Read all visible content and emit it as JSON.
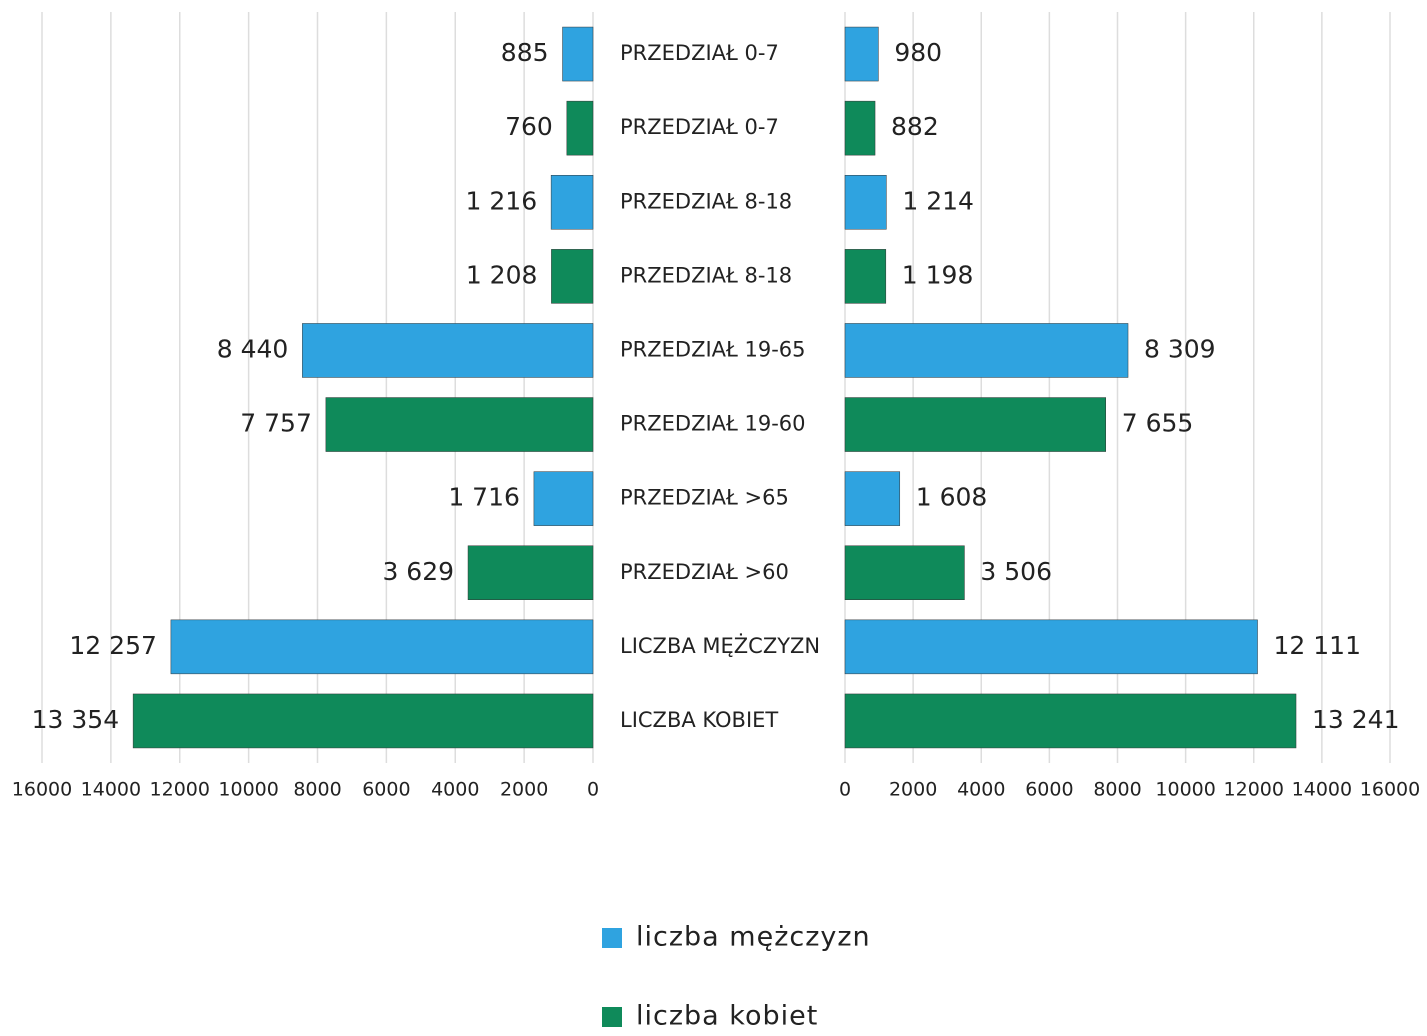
{
  "chart_data": [
    {
      "type": "bar",
      "orientation": "horizontal",
      "x_reversed": true,
      "categories": [
        "PRZEDZIAŁ 0-7",
        "PRZEDZIAŁ 0-7",
        "PRZEDZIAŁ 8-18",
        "PRZEDZIAŁ 8-18",
        "PRZEDZIAŁ 19-65",
        "PRZEDZIAŁ 19-60",
        "PRZEDZIAŁ >65",
        "PRZEDZIAŁ >60",
        "LICZBA MĘŻCZYZN",
        "LICZBA KOBIET"
      ],
      "values": [
        885,
        760,
        1216,
        1208,
        8440,
        7757,
        1716,
        3629,
        12257,
        13354
      ],
      "value_labels": [
        "885",
        "760",
        "1 216",
        "1 208",
        "8 440",
        "7 757",
        "1 716",
        "3 629",
        "12 257",
        "13 354"
      ],
      "colors": [
        "#2fa3e0",
        "#0f8a5a",
        "#2fa3e0",
        "#0f8a5a",
        "#2fa3e0",
        "#0f8a5a",
        "#2fa3e0",
        "#0f8a5a",
        "#2fa3e0",
        "#0f8a5a"
      ],
      "xlim": [
        0,
        16000
      ],
      "xticks": [
        0,
        2000,
        4000,
        6000,
        8000,
        10000,
        12000,
        14000,
        16000
      ],
      "grid": true
    },
    {
      "type": "bar",
      "orientation": "horizontal",
      "x_reversed": false,
      "values": [
        980,
        882,
        1214,
        1198,
        8309,
        7655,
        1608,
        3506,
        12111,
        13241
      ],
      "value_labels": [
        "980",
        "882",
        "1 214",
        "1 198",
        "8 309",
        "7 655",
        "1 608",
        "3 506",
        "12 111",
        "13 241"
      ],
      "colors": [
        "#2fa3e0",
        "#0f8a5a",
        "#2fa3e0",
        "#0f8a5a",
        "#2fa3e0",
        "#0f8a5a",
        "#2fa3e0",
        "#0f8a5a",
        "#2fa3e0",
        "#0f8a5a"
      ],
      "xlim": [
        0,
        16000
      ],
      "xticks": [
        0,
        2000,
        4000,
        6000,
        8000,
        10000,
        12000,
        14000,
        16000
      ],
      "grid": true
    }
  ],
  "legend": [
    {
      "name": "liczba mężczyzn",
      "color": "#2fa3e0"
    },
    {
      "name": "liczba kobiet",
      "color": "#0f8a5a"
    }
  ]
}
